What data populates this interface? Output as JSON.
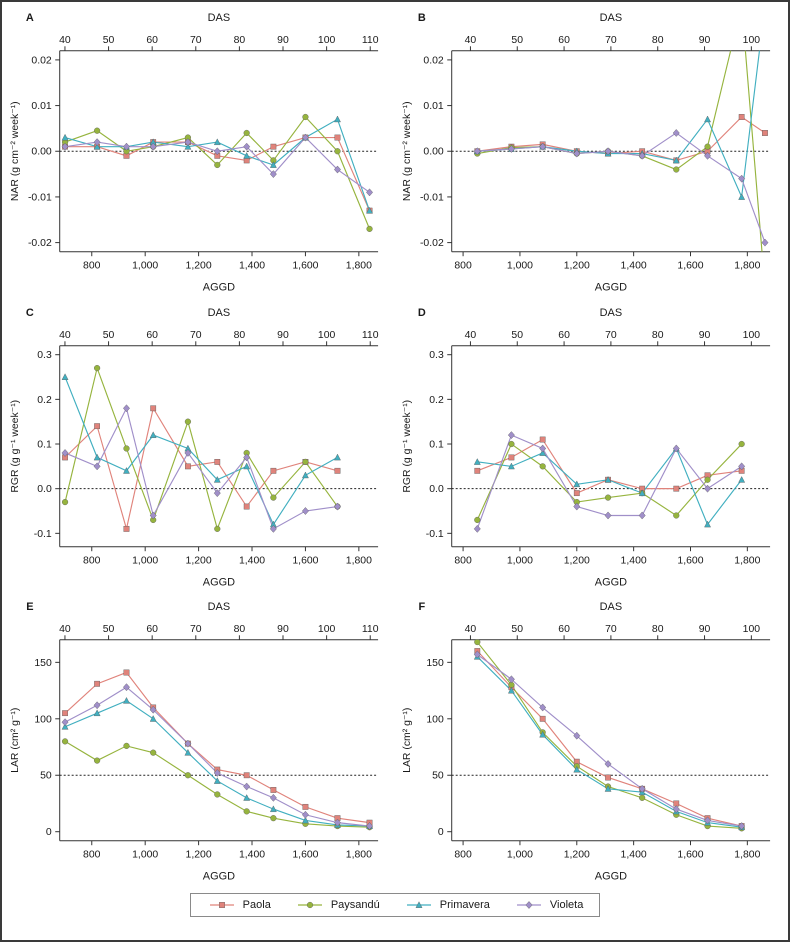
{
  "figure": {
    "description": "Six-panel growth analysis figure: NAR, RGR and LAR versus AGGD (bottom axis) and DAS (top axis) for four cultivars"
  },
  "series_styles": [
    {
      "name": "Paola",
      "color": "#e0837b",
      "marker": "square"
    },
    {
      "name": "Paysandú",
      "color": "#96b43e",
      "marker": "circle"
    },
    {
      "name": "Primavera",
      "color": "#41afc0",
      "marker": "triangle"
    },
    {
      "name": "Violeta",
      "color": "#a08fc9",
      "marker": "diamond"
    }
  ],
  "legend": {
    "items": [
      {
        "label": "Paola"
      },
      {
        "label": "Paysandú"
      },
      {
        "label": "Primavera"
      },
      {
        "label": "Violeta"
      }
    ]
  },
  "chart_data": [
    {
      "type": "line",
      "letter": "A",
      "top_xlabel": "DAS",
      "xlabel": "AGGD",
      "ylabel": "NAR (g cm⁻² week⁻¹)",
      "xlim": [
        680,
        1872
      ],
      "xticks": [
        800,
        1000,
        1200,
        1400,
        1600,
        1800
      ],
      "xtick_labels": [
        "800",
        "1,000",
        "1,200",
        "1,400",
        "1,600",
        "1,800"
      ],
      "das_lim": [
        38.8,
        111.8
      ],
      "das_ticks": [
        40,
        50,
        60,
        70,
        80,
        90,
        100,
        110
      ],
      "ylim": [
        -0.022,
        0.022
      ],
      "yticks": [
        0.02,
        0.01,
        0,
        -0.01,
        -0.02
      ],
      "ytick_labels": [
        "0.02",
        "0.01",
        "0.00",
        "-0.01",
        "-0.02"
      ],
      "refline": 0,
      "x": [
        700,
        820,
        930,
        1030,
        1160,
        1270,
        1380,
        1480,
        1600,
        1720,
        1840
      ],
      "series": [
        {
          "name": "Paola",
          "values": [
            0.001,
            0.001,
            -0.001,
            0.002,
            0.002,
            -0.001,
            -0.002,
            0.001,
            0.003,
            0.003,
            -0.013
          ]
        },
        {
          "name": "Paysandú",
          "values": [
            0.002,
            0.0045,
            0.0,
            0.001,
            0.003,
            -0.003,
            0.004,
            -0.002,
            0.0075,
            0.0,
            -0.017
          ]
        },
        {
          "name": "Primavera",
          "values": [
            0.003,
            0.001,
            0.001,
            0.002,
            0.001,
            0.002,
            -0.001,
            -0.003,
            0.003,
            0.007,
            -0.013
          ]
        },
        {
          "name": "Violeta",
          "values": [
            0.001,
            0.002,
            0.001,
            0.001,
            0.002,
            0.0,
            0.001,
            -0.005,
            0.003,
            -0.004,
            -0.009
          ]
        }
      ]
    },
    {
      "type": "line",
      "letter": "B",
      "top_xlabel": "DAS",
      "xlabel": "AGGD",
      "ylabel": "NAR (g cm⁻² week⁻¹)",
      "xlim": [
        760,
        1880
      ],
      "xticks": [
        800,
        1000,
        1200,
        1400,
        1600,
        1800
      ],
      "xtick_labels": [
        "800",
        "1,000",
        "1,200",
        "1,400",
        "1,600",
        "1,800"
      ],
      "das_lim": [
        36,
        104
      ],
      "das_ticks": [
        40,
        50,
        60,
        70,
        80,
        90,
        100
      ],
      "ylim": [
        -0.022,
        0.022
      ],
      "yticks": [
        0.02,
        0.01,
        0,
        -0.01,
        -0.02
      ],
      "ytick_labels": [
        "0.02",
        "0.01",
        "0.00",
        "-0.01",
        "-0.02"
      ],
      "refline": 0,
      "x": [
        850,
        970,
        1080,
        1200,
        1310,
        1430,
        1550,
        1660,
        1780,
        1862
      ],
      "series": [
        {
          "name": "Paola",
          "values": [
            0.0,
            0.001,
            0.0015,
            0.0,
            -0.0005,
            0.0,
            -0.002,
            0.0,
            0.0075,
            0.004
          ]
        },
        {
          "name": "Paysandú",
          "values": [
            -0.0005,
            0.0008,
            0.001,
            -0.0005,
            0.0,
            -0.001,
            -0.004,
            0.001,
            0.032,
            -0.03
          ]
        },
        {
          "name": "Primavera",
          "values": [
            0.0,
            0.0005,
            0.001,
            0.0,
            -0.0005,
            -0.0005,
            -0.002,
            0.007,
            -0.01,
            0.032
          ]
        },
        {
          "name": "Violeta",
          "values": [
            0.0,
            0.0005,
            0.001,
            -0.0005,
            0.0,
            -0.001,
            0.004,
            -0.001,
            -0.006,
            -0.02
          ]
        }
      ]
    },
    {
      "type": "line",
      "letter": "C",
      "top_xlabel": "DAS",
      "xlabel": "AGGD",
      "ylabel": "RGR (g g⁻¹ week⁻¹)",
      "xlim": [
        680,
        1872
      ],
      "xticks": [
        800,
        1000,
        1200,
        1400,
        1600,
        1800
      ],
      "xtick_labels": [
        "800",
        "1,000",
        "1,200",
        "1,400",
        "1,600",
        "1,800"
      ],
      "das_lim": [
        38.8,
        111.8
      ],
      "das_ticks": [
        40,
        50,
        60,
        70,
        80,
        90,
        100,
        110
      ],
      "ylim": [
        -0.13,
        0.32
      ],
      "yticks": [
        0.3,
        0.2,
        0.1,
        0,
        -0.1
      ],
      "ytick_labels": [
        "0.3",
        "0.2",
        "0.1",
        "0.0",
        "-0.1"
      ],
      "refline": 0,
      "x": [
        700,
        820,
        930,
        1030,
        1160,
        1270,
        1380,
        1480,
        1600,
        1720
      ],
      "series": [
        {
          "name": "Paola",
          "values": [
            0.07,
            0.14,
            -0.09,
            0.18,
            0.05,
            0.06,
            -0.04,
            0.04,
            0.06,
            0.04
          ]
        },
        {
          "name": "Paysandú",
          "values": [
            -0.03,
            0.27,
            0.09,
            -0.07,
            0.15,
            -0.09,
            0.08,
            -0.02,
            0.06,
            -0.04
          ]
        },
        {
          "name": "Primavera",
          "values": [
            0.25,
            0.07,
            0.04,
            0.12,
            0.09,
            0.02,
            0.05,
            -0.08,
            0.03,
            0.07
          ]
        },
        {
          "name": "Violeta",
          "values": [
            0.08,
            0.05,
            0.18,
            -0.06,
            0.08,
            -0.01,
            0.07,
            -0.09,
            -0.05,
            -0.04
          ]
        }
      ]
    },
    {
      "type": "line",
      "letter": "D",
      "top_xlabel": "DAS",
      "xlabel": "AGGD",
      "ylabel": "RGR (g g⁻¹ week⁻¹)",
      "xlim": [
        760,
        1880
      ],
      "xticks": [
        800,
        1000,
        1200,
        1400,
        1600,
        1800
      ],
      "xtick_labels": [
        "800",
        "1,000",
        "1,200",
        "1,400",
        "1,600",
        "1,800"
      ],
      "das_lim": [
        36,
        104
      ],
      "das_ticks": [
        40,
        50,
        60,
        70,
        80,
        90,
        100
      ],
      "ylim": [
        -0.13,
        0.32
      ],
      "yticks": [
        0.3,
        0.2,
        0.1,
        0,
        -0.1
      ],
      "ytick_labels": [
        "0.3",
        "0.2",
        "0.1",
        "0.0",
        "-0.1"
      ],
      "refline": 0,
      "x": [
        850,
        970,
        1080,
        1200,
        1310,
        1430,
        1550,
        1660,
        1780
      ],
      "series": [
        {
          "name": "Paola",
          "values": [
            0.04,
            0.07,
            0.11,
            -0.01,
            0.02,
            0.0,
            0.0,
            0.03,
            0.04
          ]
        },
        {
          "name": "Paysandú",
          "values": [
            -0.07,
            0.1,
            0.05,
            -0.03,
            -0.02,
            -0.01,
            -0.06,
            0.02,
            0.1
          ]
        },
        {
          "name": "Primavera",
          "values": [
            0.06,
            0.05,
            0.08,
            0.01,
            0.02,
            -0.01,
            0.09,
            -0.08,
            0.02
          ]
        },
        {
          "name": "Violeta",
          "values": [
            -0.09,
            0.12,
            0.09,
            -0.04,
            -0.06,
            -0.06,
            0.09,
            0.0,
            0.05
          ]
        }
      ]
    },
    {
      "type": "line",
      "letter": "E",
      "top_xlabel": "DAS",
      "xlabel": "AGGD",
      "ylabel": "LAR (cm² g⁻¹)",
      "xlim": [
        680,
        1872
      ],
      "xticks": [
        800,
        1000,
        1200,
        1400,
        1600,
        1800
      ],
      "xtick_labels": [
        "800",
        "1,000",
        "1,200",
        "1,400",
        "1,600",
        "1,800"
      ],
      "das_lim": [
        38.8,
        111.8
      ],
      "das_ticks": [
        40,
        50,
        60,
        70,
        80,
        90,
        100,
        110
      ],
      "ylim": [
        -8,
        170
      ],
      "yticks": [
        0,
        50,
        100,
        150
      ],
      "ytick_labels": [
        "0",
        "50",
        "100",
        "150"
      ],
      "refline": 50,
      "x": [
        700,
        820,
        930,
        1030,
        1160,
        1270,
        1380,
        1480,
        1600,
        1720,
        1840
      ],
      "series": [
        {
          "name": "Paola",
          "values": [
            105,
            131,
            141,
            110,
            78,
            55,
            50,
            37,
            22,
            12,
            8
          ]
        },
        {
          "name": "Paysandú",
          "values": [
            80,
            63,
            76,
            70,
            50,
            33,
            18,
            12,
            7,
            5,
            4
          ]
        },
        {
          "name": "Primavera",
          "values": [
            93,
            105,
            116,
            100,
            70,
            45,
            30,
            20,
            10,
            6,
            5
          ]
        },
        {
          "name": "Violeta",
          "values": [
            97,
            112,
            128,
            108,
            78,
            52,
            40,
            30,
            15,
            8,
            5
          ]
        }
      ]
    },
    {
      "type": "line",
      "letter": "F",
      "top_xlabel": "DAS",
      "xlabel": "AGGD",
      "ylabel": "LAR (cm² g⁻¹)",
      "xlim": [
        760,
        1880
      ],
      "xticks": [
        800,
        1000,
        1200,
        1400,
        1600,
        1800
      ],
      "xtick_labels": [
        "800",
        "1,000",
        "1,200",
        "1,400",
        "1,600",
        "1,800"
      ],
      "das_lim": [
        36,
        104
      ],
      "das_ticks": [
        40,
        50,
        60,
        70,
        80,
        90,
        100
      ],
      "ylim": [
        -8,
        170
      ],
      "yticks": [
        0,
        50,
        100,
        150
      ],
      "ytick_labels": [
        "0",
        "50",
        "100",
        "150"
      ],
      "refline": 50,
      "x": [
        850,
        970,
        1080,
        1200,
        1310,
        1430,
        1550,
        1660,
        1780
      ],
      "series": [
        {
          "name": "Paola",
          "values": [
            160,
            128,
            100,
            62,
            48,
            38,
            25,
            12,
            5
          ]
        },
        {
          "name": "Paysandú",
          "values": [
            168,
            130,
            88,
            58,
            40,
            30,
            15,
            5,
            3
          ]
        },
        {
          "name": "Primavera",
          "values": [
            155,
            125,
            86,
            55,
            38,
            35,
            18,
            8,
            4
          ]
        },
        {
          "name": "Violeta",
          "values": [
            157,
            135,
            110,
            85,
            60,
            38,
            20,
            10,
            5
          ]
        }
      ]
    }
  ]
}
